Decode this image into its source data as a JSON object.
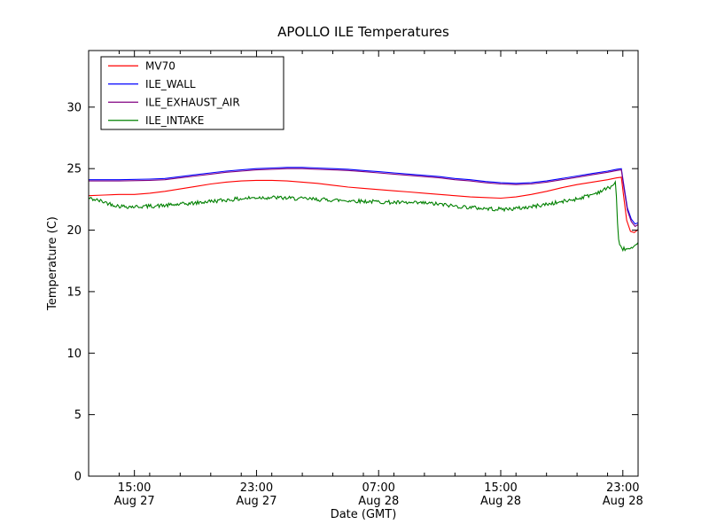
{
  "chart_data": {
    "type": "line",
    "title": "APOLLO ILE Temperatures",
    "xlabel": "Date (GMT)",
    "ylabel": "Temperature (C)",
    "x_unit": "hours since Aug 27 12:00 GMT",
    "xlim": [
      0,
      36
    ],
    "ylim": [
      0,
      34.6
    ],
    "grid": false,
    "legend_position": "upper left",
    "y_ticks": [
      0,
      5,
      10,
      15,
      20,
      25,
      30
    ],
    "x_ticks": [
      {
        "pos": 3,
        "time": "15:00",
        "date": "Aug 27"
      },
      {
        "pos": 11,
        "time": "23:00",
        "date": "Aug 27"
      },
      {
        "pos": 19,
        "time": "07:00",
        "date": "Aug 28"
      },
      {
        "pos": 27,
        "time": "15:00",
        "date": "Aug 28"
      },
      {
        "pos": 35,
        "time": "23:00",
        "date": "Aug 28"
      }
    ],
    "x_minor_ticks": [
      2,
      4,
      6,
      8,
      10,
      12,
      14,
      16,
      18,
      20,
      22,
      24,
      26,
      28,
      30,
      32,
      34
    ],
    "series": [
      {
        "name": "MV70",
        "color": "#ff0000",
        "points": [
          [
            0,
            22.8
          ],
          [
            1,
            22.85
          ],
          [
            2,
            22.9
          ],
          [
            3,
            22.9
          ],
          [
            4,
            23.0
          ],
          [
            5,
            23.15
          ],
          [
            6,
            23.35
          ],
          [
            7,
            23.55
          ],
          [
            8,
            23.75
          ],
          [
            9,
            23.9
          ],
          [
            10,
            24.0
          ],
          [
            11,
            24.05
          ],
          [
            12,
            24.05
          ],
          [
            13,
            24.0
          ],
          [
            14,
            23.9
          ],
          [
            15,
            23.8
          ],
          [
            16,
            23.65
          ],
          [
            17,
            23.5
          ],
          [
            18,
            23.4
          ],
          [
            19,
            23.3
          ],
          [
            20,
            23.2
          ],
          [
            21,
            23.1
          ],
          [
            22,
            23.0
          ],
          [
            23,
            22.9
          ],
          [
            24,
            22.8
          ],
          [
            25,
            22.7
          ],
          [
            26,
            22.65
          ],
          [
            27,
            22.6
          ],
          [
            28,
            22.7
          ],
          [
            29,
            22.9
          ],
          [
            30,
            23.15
          ],
          [
            31,
            23.45
          ],
          [
            32,
            23.7
          ],
          [
            33,
            23.9
          ],
          [
            34,
            24.1
          ],
          [
            34.6,
            24.25
          ],
          [
            34.9,
            24.3
          ],
          [
            35.05,
            22.8
          ],
          [
            35.25,
            20.8
          ],
          [
            35.5,
            19.9
          ],
          [
            35.75,
            19.8
          ],
          [
            36,
            20.05
          ]
        ]
      },
      {
        "name": "ILE_WALL",
        "color": "#0000ff",
        "points": [
          [
            0,
            24.1
          ],
          [
            2,
            24.1
          ],
          [
            4,
            24.15
          ],
          [
            5,
            24.2
          ],
          [
            6,
            24.35
          ],
          [
            7,
            24.5
          ],
          [
            8,
            24.65
          ],
          [
            9,
            24.8
          ],
          [
            10,
            24.9
          ],
          [
            11,
            25.0
          ],
          [
            12,
            25.05
          ],
          [
            13,
            25.1
          ],
          [
            14,
            25.1
          ],
          [
            15,
            25.05
          ],
          [
            16,
            25.0
          ],
          [
            17,
            24.95
          ],
          [
            18,
            24.85
          ],
          [
            19,
            24.75
          ],
          [
            20,
            24.65
          ],
          [
            21,
            24.55
          ],
          [
            22,
            24.45
          ],
          [
            23,
            24.35
          ],
          [
            24,
            24.2
          ],
          [
            25,
            24.1
          ],
          [
            26,
            23.95
          ],
          [
            27,
            23.85
          ],
          [
            28,
            23.8
          ],
          [
            29,
            23.85
          ],
          [
            30,
            24.0
          ],
          [
            31,
            24.2
          ],
          [
            32,
            24.4
          ],
          [
            33,
            24.6
          ],
          [
            34,
            24.8
          ],
          [
            34.6,
            24.95
          ],
          [
            34.9,
            25.0
          ],
          [
            35.05,
            23.8
          ],
          [
            35.3,
            21.8
          ],
          [
            35.55,
            20.9
          ],
          [
            35.8,
            20.5
          ],
          [
            36,
            20.6
          ]
        ]
      },
      {
        "name": "ILE_EXHAUST_AIR",
        "color": "#800080",
        "points": [
          [
            0,
            24.0
          ],
          [
            2,
            24.0
          ],
          [
            4,
            24.05
          ],
          [
            5,
            24.1
          ],
          [
            6,
            24.25
          ],
          [
            7,
            24.4
          ],
          [
            8,
            24.55
          ],
          [
            9,
            24.7
          ],
          [
            10,
            24.8
          ],
          [
            11,
            24.9
          ],
          [
            12,
            24.95
          ],
          [
            13,
            25.0
          ],
          [
            14,
            25.0
          ],
          [
            15,
            24.95
          ],
          [
            16,
            24.9
          ],
          [
            17,
            24.85
          ],
          [
            18,
            24.75
          ],
          [
            19,
            24.65
          ],
          [
            20,
            24.55
          ],
          [
            21,
            24.45
          ],
          [
            22,
            24.35
          ],
          [
            23,
            24.25
          ],
          [
            24,
            24.1
          ],
          [
            25,
            24.0
          ],
          [
            26,
            23.85
          ],
          [
            27,
            23.75
          ],
          [
            28,
            23.7
          ],
          [
            29,
            23.75
          ],
          [
            30,
            23.9
          ],
          [
            31,
            24.1
          ],
          [
            32,
            24.3
          ],
          [
            33,
            24.5
          ],
          [
            34,
            24.7
          ],
          [
            34.6,
            24.85
          ],
          [
            34.9,
            24.9
          ],
          [
            35.05,
            23.6
          ],
          [
            35.3,
            21.6
          ],
          [
            35.55,
            20.7
          ],
          [
            35.8,
            20.3
          ],
          [
            36,
            20.45
          ]
        ]
      },
      {
        "name": "ILE_INTAKE",
        "color": "#008000",
        "noise": 0.16,
        "noise_seed": 42,
        "points": [
          [
            0,
            22.6
          ],
          [
            0.5,
            22.45
          ],
          [
            1,
            22.3
          ],
          [
            1.5,
            22.1
          ],
          [
            2,
            21.95
          ],
          [
            3,
            21.9
          ],
          [
            4,
            21.95
          ],
          [
            5,
            22.0
          ],
          [
            6,
            22.1
          ],
          [
            7,
            22.2
          ],
          [
            8,
            22.35
          ],
          [
            9,
            22.45
          ],
          [
            10,
            22.55
          ],
          [
            11,
            22.65
          ],
          [
            12,
            22.65
          ],
          [
            13,
            22.6
          ],
          [
            14,
            22.55
          ],
          [
            15,
            22.5
          ],
          [
            16,
            22.45
          ],
          [
            17,
            22.4
          ],
          [
            18,
            22.35
          ],
          [
            19,
            22.3
          ],
          [
            20,
            22.25
          ],
          [
            21,
            22.2
          ],
          [
            22,
            22.2
          ],
          [
            23,
            22.1
          ],
          [
            24,
            21.95
          ],
          [
            25,
            21.85
          ],
          [
            26,
            21.75
          ],
          [
            27,
            21.7
          ],
          [
            28,
            21.75
          ],
          [
            29,
            21.9
          ],
          [
            30,
            22.1
          ],
          [
            31,
            22.3
          ],
          [
            32,
            22.55
          ],
          [
            33,
            22.9
          ],
          [
            34,
            23.4
          ],
          [
            34.3,
            23.6
          ],
          [
            34.55,
            23.9
          ],
          [
            34.65,
            20.5
          ],
          [
            34.75,
            18.7
          ],
          [
            35.0,
            18.5
          ],
          [
            35.4,
            18.45
          ],
          [
            35.7,
            18.5
          ],
          [
            36,
            18.85
          ]
        ]
      }
    ]
  }
}
